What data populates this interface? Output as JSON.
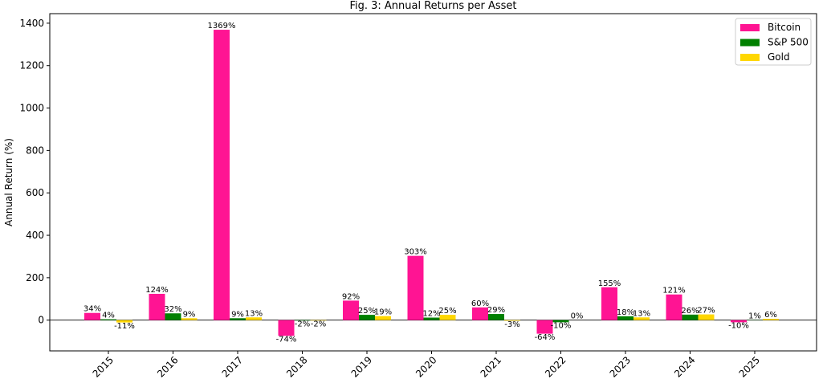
{
  "chart_data": {
    "type": "bar",
    "title": "Fig. 3: Annual Returns per Asset",
    "xlabel": "",
    "ylabel": "Annual Return (%)",
    "ylim": [
      -145,
      1445
    ],
    "yticks": [
      0,
      200,
      400,
      600,
      800,
      1000,
      1200,
      1400
    ],
    "grid": false,
    "legend_position": "top-right",
    "categories": [
      "2015",
      "2016",
      "2017",
      "2018",
      "2019",
      "2020",
      "2021",
      "2022",
      "2023",
      "2024",
      "2025"
    ],
    "series": [
      {
        "name": "Bitcoin",
        "color": "#ff1493",
        "values": [
          34,
          124,
          1369,
          -74,
          92,
          303,
          60,
          -64,
          155,
          121,
          -10
        ],
        "labels": [
          "34%",
          "124%",
          "1369%",
          "-74%",
          "92%",
          "303%",
          "60%",
          "-64%",
          "155%",
          "121%",
          "-10%"
        ]
      },
      {
        "name": "S&P 500",
        "color": "#008000",
        "values": [
          4,
          32,
          9,
          -2,
          25,
          12,
          29,
          -10,
          18,
          26,
          1
        ],
        "labels": [
          "4%",
          "32%",
          "9%",
          "-2%",
          "25%",
          "12%",
          "29%",
          "-10%",
          "18%",
          "26%",
          "1%"
        ]
      },
      {
        "name": "Gold",
        "color": "#ffd700",
        "values": [
          -11,
          9,
          13,
          -2,
          19,
          25,
          -3,
          0,
          13,
          27,
          6
        ],
        "labels": [
          "-11%",
          "9%",
          "13%",
          "-2%",
          "19%",
          "25%",
          "-3%",
          "0%",
          "13%",
          "27%",
          "6%"
        ]
      }
    ]
  }
}
